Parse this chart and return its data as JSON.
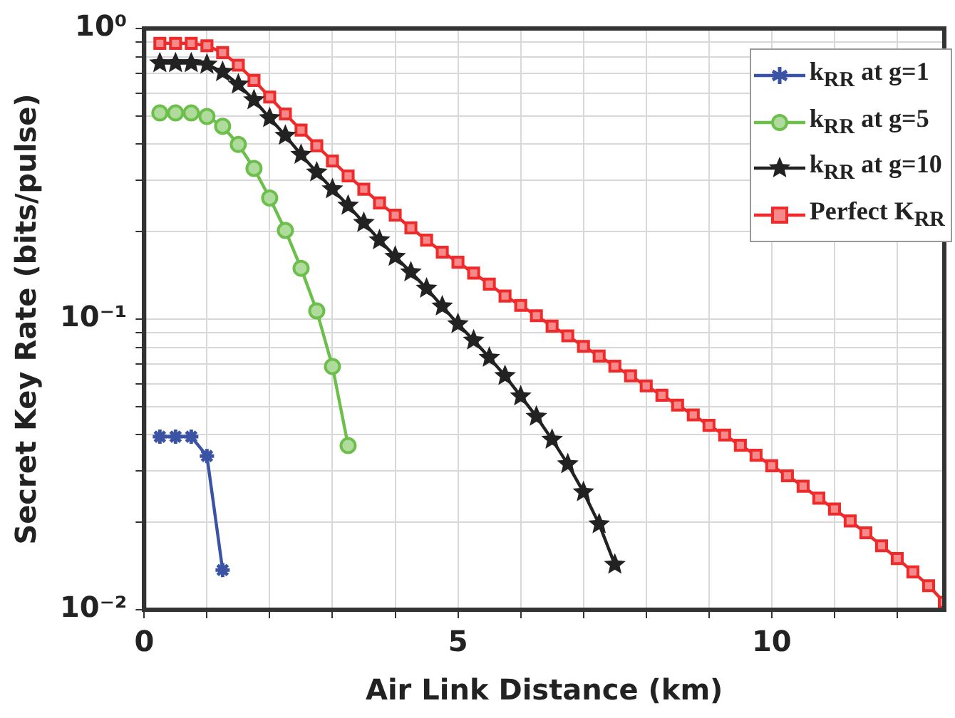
{
  "chart_data": {
    "type": "line",
    "xlabel": "Air Link Distance (km)",
    "ylabel": "Secret Key Rate (bits/pulse)",
    "log": "y",
    "grid": true,
    "legend": "top right",
    "line_style": "solid",
    "xlim": [
      0,
      12.75
    ],
    "xticks": [
      0,
      {
        "value": 1,
        "label": null
      },
      {
        "value": 2,
        "label": null
      },
      {
        "value": 3,
        "label": null
      },
      {
        "value": 4,
        "label": null
      },
      5,
      {
        "value": 6,
        "label": null
      },
      {
        "value": 7,
        "label": null
      },
      {
        "value": 8,
        "label": null
      },
      {
        "value": 9,
        "label": null
      },
      10,
      {
        "value": 11,
        "label": null
      },
      {
        "value": 12,
        "label": null
      }
    ],
    "ylim": [
      0.01,
      1
    ],
    "yticks": [
      {
        "value": 0.01,
        "label": "10⁻²"
      },
      {
        "value": 0.02,
        "label": null
      },
      {
        "value": 0.03,
        "label": null
      },
      {
        "value": 0.04,
        "label": null
      },
      {
        "value": 0.05,
        "label": null
      },
      {
        "value": 0.06,
        "label": null
      },
      {
        "value": 0.07,
        "label": null
      },
      {
        "value": 0.08,
        "label": null
      },
      {
        "value": 0.09,
        "label": null
      },
      {
        "value": 0.1,
        "label": "10⁻¹"
      },
      {
        "value": 0.2,
        "label": null
      },
      {
        "value": 0.3,
        "label": null
      },
      {
        "value": 0.4,
        "label": null
      },
      {
        "value": 0.5,
        "label": null
      },
      {
        "value": 0.6,
        "label": null
      },
      {
        "value": 0.7,
        "label": null
      },
      {
        "value": 0.8,
        "label": null
      },
      {
        "value": 0.9,
        "label": null
      },
      {
        "value": 1,
        "label": "10⁰"
      }
    ],
    "series": [
      {
        "name": "k$_{RR}$ at g=1",
        "color": "#3a53a4",
        "marker": "cross",
        "x": [
          0.25,
          0.5,
          0.75,
          1.0,
          1.25
        ],
        "values": [
          0.0394,
          0.0394,
          0.0394,
          0.0338,
          0.0137
        ]
      },
      {
        "name": "k$_{RR}$ at g=5",
        "color": "#6dbf4b",
        "marker": "circle",
        "x": [
          0.25,
          0.5,
          0.75,
          1.0,
          1.25,
          1.5,
          1.75,
          2.0,
          2.25,
          2.5,
          2.75,
          3.0,
          3.25
        ],
        "values": [
          0.512,
          0.512,
          0.512,
          0.498,
          0.461,
          0.399,
          0.33,
          0.261,
          0.202,
          0.1496,
          0.1067,
          0.0687,
          0.0367
        ]
      },
      {
        "name": "k$_{RR}$ at g=10",
        "color": "#222222",
        "marker": "star",
        "x": [
          0.25,
          0.5,
          0.75,
          1.0,
          1.25,
          1.5,
          1.75,
          2.0,
          2.25,
          2.5,
          2.75,
          3.0,
          3.25,
          3.5,
          3.75,
          4.0,
          4.25,
          4.5,
          4.75,
          5.0,
          5.25,
          5.5,
          5.75,
          6.0,
          6.25,
          6.5,
          6.75,
          7.0,
          7.25,
          7.5
        ],
        "values": [
          0.76,
          0.76,
          0.76,
          0.752,
          0.709,
          0.642,
          0.567,
          0.492,
          0.428,
          0.368,
          0.32,
          0.28,
          0.246,
          0.2146,
          0.187,
          0.164,
          0.145,
          0.1275,
          0.1107,
          0.0962,
          0.0845,
          0.0737,
          0.0638,
          0.0543,
          0.0462,
          0.0385,
          0.0317,
          0.0254,
          0.0197,
          0.0143
        ]
      },
      {
        "name": "Perfect K$_{RR}$",
        "color": "#ee2a2a",
        "marker": "square",
        "x": [
          0.25,
          0.5,
          0.75,
          1.0,
          1.25,
          1.5,
          1.75,
          2.0,
          2.25,
          2.5,
          2.75,
          3.0,
          3.25,
          3.5,
          3.75,
          4.0,
          4.25,
          4.5,
          4.75,
          5.0,
          5.25,
          5.5,
          5.75,
          6.0,
          6.25,
          6.5,
          6.75,
          7.0,
          7.25,
          7.5,
          7.75,
          8.0,
          8.25,
          8.5,
          8.75,
          9.0,
          9.25,
          9.5,
          9.75,
          10.0,
          10.25,
          10.5,
          10.75,
          11.0,
          11.25,
          11.5,
          11.75,
          12.0,
          12.25,
          12.5,
          12.75
        ],
        "values": [
          0.889,
          0.889,
          0.889,
          0.872,
          0.826,
          0.748,
          0.663,
          0.581,
          0.508,
          0.447,
          0.395,
          0.35,
          0.311,
          0.28,
          0.251,
          0.228,
          0.206,
          0.187,
          0.17,
          0.157,
          0.144,
          0.132,
          0.12,
          0.1115,
          0.1027,
          0.0946,
          0.0876,
          0.0806,
          0.0746,
          0.0689,
          0.0638,
          0.0589,
          0.0547,
          0.0506,
          0.0468,
          0.0431,
          0.0399,
          0.0368,
          0.034,
          0.0313,
          0.0289,
          0.0266,
          0.0242,
          0.0222,
          0.0202,
          0.0184,
          0.0166,
          0.015,
          0.0135,
          0.0121,
          0.0106
        ]
      }
    ]
  }
}
